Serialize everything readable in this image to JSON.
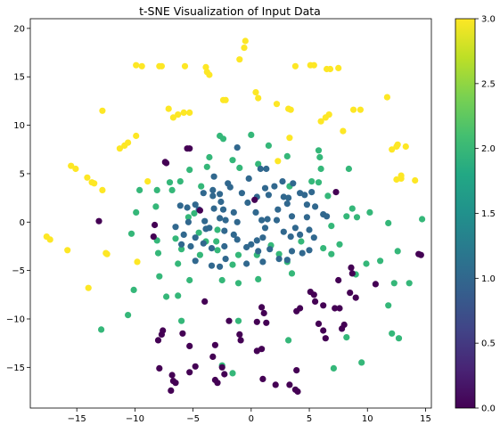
{
  "chart_data": {
    "type": "scatter",
    "title": "t-SNE Visualization of Input Data",
    "xlabel": "",
    "ylabel": "",
    "xlim": [
      -19,
      15.5
    ],
    "ylim": [
      -19.2,
      21
    ],
    "xticks": [
      -15,
      -10,
      -5,
      0,
      5,
      10,
      15
    ],
    "yticks": [
      -15,
      -10,
      -5,
      0,
      5,
      10,
      15,
      20
    ],
    "grid": false,
    "colorbar": {
      "colormap": "viridis",
      "range": [
        0.0,
        3.0
      ],
      "ticks": [
        0.0,
        0.5,
        1.0,
        1.5,
        2.0,
        2.5,
        3.0
      ],
      "tick_labels": [
        "0.0",
        "0.5",
        "1.0",
        "1.5",
        "2.0",
        "2.5",
        "3.0"
      ]
    },
    "series": [
      {
        "value": 3,
        "color": "#fde725",
        "points": [
          [
            -0.5,
            18.7
          ],
          [
            -0.6,
            18.0
          ],
          [
            -1.0,
            16.8
          ],
          [
            -9.9,
            16.2
          ],
          [
            -9.4,
            16.1
          ],
          [
            -7.9,
            16.1
          ],
          [
            -7.7,
            16.1
          ],
          [
            -5.7,
            16.1
          ],
          [
            -3.9,
            16.0
          ],
          [
            -3.8,
            15.5
          ],
          [
            -3.6,
            15.2
          ],
          [
            3.8,
            16.1
          ],
          [
            5.1,
            16.2
          ],
          [
            5.4,
            16.2
          ],
          [
            6.5,
            15.8
          ],
          [
            6.8,
            15.8
          ],
          [
            7.5,
            15.9
          ],
          [
            -2.4,
            12.6
          ],
          [
            -2.2,
            12.6
          ],
          [
            0.4,
            13.4
          ],
          [
            0.6,
            12.8
          ],
          [
            2.2,
            12.2
          ],
          [
            3.2,
            11.7
          ],
          [
            3.4,
            11.6
          ],
          [
            -7.1,
            11.7
          ],
          [
            -6.7,
            10.8
          ],
          [
            -6.3,
            11.1
          ],
          [
            -5.8,
            11.3
          ],
          [
            -5.3,
            11.3
          ],
          [
            -12.8,
            11.5
          ],
          [
            6.0,
            10.4
          ],
          [
            6.4,
            10.8
          ],
          [
            6.7,
            11.1
          ],
          [
            8.8,
            11.6
          ],
          [
            9.4,
            11.6
          ],
          [
            11.7,
            12.9
          ],
          [
            -9.9,
            8.9
          ],
          [
            -10.6,
            8.2
          ],
          [
            -10.9,
            7.9
          ],
          [
            -11.3,
            7.6
          ],
          [
            -8.9,
            4.2
          ],
          [
            7.9,
            9.4
          ],
          [
            12.1,
            7.5
          ],
          [
            12.5,
            7.8
          ],
          [
            12.6,
            8.0
          ],
          [
            13.3,
            7.8
          ],
          [
            -15.5,
            5.8
          ],
          [
            -15.1,
            5.5
          ],
          [
            -14.1,
            4.6
          ],
          [
            -13.7,
            4.1
          ],
          [
            -13.5,
            4.0
          ],
          [
            -12.8,
            3.3
          ],
          [
            12.9,
            4.8
          ],
          [
            12.5,
            4.4
          ],
          [
            12.9,
            4.5
          ],
          [
            14.1,
            4.3
          ],
          [
            -17.6,
            -1.5
          ],
          [
            -17.3,
            -1.8
          ],
          [
            -15.8,
            -2.9
          ],
          [
            -12.5,
            -3.2
          ],
          [
            -12.4,
            -3.3
          ],
          [
            -9.8,
            -4.1
          ],
          [
            -14.0,
            -6.8
          ],
          [
            3.3,
            8.7
          ],
          [
            2.3,
            6.3
          ]
        ]
      },
      {
        "value": 2,
        "color": "#35b779",
        "points": [
          [
            0.0,
            9.0
          ],
          [
            -2.7,
            8.9
          ],
          [
            -2.4,
            8.6
          ],
          [
            1.5,
            7.9
          ],
          [
            -3.6,
            6.7
          ],
          [
            -1.6,
            6.4
          ],
          [
            3.1,
            6.8
          ],
          [
            5.8,
            7.4
          ],
          [
            -5.3,
            5.4
          ],
          [
            -3.8,
            5.7
          ],
          [
            -1.0,
            5.6
          ],
          [
            5.9,
            6.7
          ],
          [
            0.6,
            6.0
          ],
          [
            -7.0,
            4.1
          ],
          [
            -6.1,
            4.2
          ],
          [
            -8.1,
            3.3
          ],
          [
            -9.6,
            3.3
          ],
          [
            -6.8,
            3.3
          ],
          [
            -4.3,
            3.7
          ],
          [
            6.0,
            5.5
          ],
          [
            8.4,
            5.5
          ],
          [
            -8.2,
            1.6
          ],
          [
            -9.9,
            1.0
          ],
          [
            -5.4,
            0.5
          ],
          [
            -4.9,
            0.9
          ],
          [
            10.2,
            1.0
          ],
          [
            9.1,
            0.5
          ],
          [
            -10.3,
            -1.2
          ],
          [
            -8.1,
            -1.9
          ],
          [
            -6.5,
            -1.7
          ],
          [
            -4.5,
            -1.1
          ],
          [
            -3.0,
            -2.0
          ],
          [
            1.7,
            -2.4
          ],
          [
            4.3,
            -2.0
          ],
          [
            6.2,
            -2.7
          ],
          [
            7.6,
            -2.3
          ],
          [
            11.8,
            -0.1
          ],
          [
            -8.0,
            -3.2
          ],
          [
            -4.4,
            -3.4
          ],
          [
            -2.9,
            -2.9
          ],
          [
            3.5,
            -5.3
          ],
          [
            9.0,
            -5.4
          ],
          [
            11.1,
            -4.0
          ],
          [
            14.7,
            0.3
          ],
          [
            -10.1,
            -7.0
          ],
          [
            -7.9,
            -5.6
          ],
          [
            -6.3,
            -4.3
          ],
          [
            -5.3,
            -6.0
          ],
          [
            -2.5,
            -6.0
          ],
          [
            -1.1,
            -6.3
          ],
          [
            0.6,
            -5.9
          ],
          [
            -7.3,
            -7.7
          ],
          [
            -6.3,
            -7.6
          ],
          [
            -10.6,
            -9.6
          ],
          [
            -12.9,
            -11.1
          ],
          [
            -6.0,
            -10.2
          ],
          [
            -1.1,
            -10.2
          ],
          [
            3.2,
            -12.2
          ],
          [
            8.2,
            -11.9
          ],
          [
            7.1,
            -15.1
          ],
          [
            9.5,
            -14.5
          ],
          [
            12.1,
            -11.5
          ],
          [
            12.7,
            -12.0
          ],
          [
            11.8,
            -8.6
          ],
          [
            12.3,
            -6.3
          ],
          [
            13.6,
            -6.3
          ],
          [
            12.6,
            -3.0
          ],
          [
            9.9,
            -4.3
          ],
          [
            2.4,
            -3.3
          ],
          [
            6.9,
            -0.4
          ],
          [
            8.2,
            0.6
          ],
          [
            5.8,
            4.1
          ],
          [
            3.3,
            3.7
          ],
          [
            -1.6,
            -15.6
          ],
          [
            -2.5,
            -14.8
          ],
          [
            0.5,
            -3.4
          ],
          [
            -1.6,
            -4.4
          ],
          [
            -1.1,
            -3.4
          ],
          [
            -2.9,
            -0.8
          ],
          [
            -3.9,
            -2.0
          ],
          [
            5.2,
            4.2
          ],
          [
            6.6,
            2.7
          ],
          [
            8.7,
            1.4
          ],
          [
            6.9,
            -3.3
          ],
          [
            3.1,
            -4.1
          ],
          [
            -6.0,
            -2.8
          ]
        ]
      },
      {
        "value": 1,
        "color": "#31688e",
        "points": [
          [
            -1.2,
            7.7
          ],
          [
            0.8,
            5.5
          ],
          [
            1.3,
            5.5
          ],
          [
            -0.2,
            4.5
          ],
          [
            -3.2,
            4.7
          ],
          [
            -2.0,
            4.0
          ],
          [
            -1.8,
            3.6
          ],
          [
            -0.8,
            3.0
          ],
          [
            0.5,
            2.6
          ],
          [
            1.2,
            3.5
          ],
          [
            2.0,
            3.7
          ],
          [
            2.7,
            4.2
          ],
          [
            3.6,
            4.0
          ],
          [
            -4.1,
            3.0
          ],
          [
            -3.3,
            3.3
          ],
          [
            -3.3,
            2.7
          ],
          [
            -2.7,
            2.9
          ],
          [
            -2.6,
            2.1
          ],
          [
            -0.3,
            2.0
          ],
          [
            1.5,
            2.8
          ],
          [
            2.8,
            2.6
          ],
          [
            3.2,
            2.5
          ],
          [
            4.2,
            3.0
          ],
          [
            4.6,
            2.8
          ],
          [
            5.2,
            3.1
          ],
          [
            -6.1,
            1.7
          ],
          [
            -5.5,
            1.5
          ],
          [
            -4.8,
            1.8
          ],
          [
            -4.5,
            1.3
          ],
          [
            -3.2,
            1.4
          ],
          [
            -2.4,
            1.3
          ],
          [
            -1.5,
            1.0
          ],
          [
            0.4,
            1.0
          ],
          [
            2.3,
            1.3
          ],
          [
            3.1,
            1.9
          ],
          [
            4.8,
            1.8
          ],
          [
            5.5,
            1.6
          ],
          [
            -5.4,
            0.0
          ],
          [
            -4.0,
            0.1
          ],
          [
            -2.7,
            0.4
          ],
          [
            -2.2,
            0.2
          ],
          [
            0.9,
            0.2
          ],
          [
            1.4,
            0.3
          ],
          [
            2.2,
            0.2
          ],
          [
            3.5,
            0.6
          ],
          [
            4.8,
            0.5
          ],
          [
            6.2,
            0.8
          ],
          [
            6.5,
            0.6
          ],
          [
            -6.5,
            -0.5
          ],
          [
            -5.8,
            -1.3
          ],
          [
            -4.8,
            -1.6
          ],
          [
            -3.9,
            -0.7
          ],
          [
            -2.3,
            -0.9
          ],
          [
            -1.5,
            -1.3
          ],
          [
            0.5,
            -1.9
          ],
          [
            2.8,
            -1.0
          ],
          [
            3.8,
            -0.6
          ],
          [
            5.0,
            -0.8
          ],
          [
            -6.0,
            -2.3
          ],
          [
            -5.2,
            -2.5
          ],
          [
            -4.1,
            -2.2
          ],
          [
            -3.4,
            -2.7
          ],
          [
            -2.3,
            -2.5
          ],
          [
            0.0,
            -2.3
          ],
          [
            1.0,
            -1.6
          ],
          [
            3.4,
            -1.5
          ],
          [
            4.2,
            -1.3
          ],
          [
            5.4,
            -1.6
          ],
          [
            -3.4,
            -4.5
          ],
          [
            -2.7,
            -4.6
          ],
          [
            -0.4,
            -4.3
          ],
          [
            1.0,
            -4.1
          ],
          [
            2.4,
            -3.8
          ],
          [
            3.1,
            -3.9
          ],
          [
            4.4,
            -3.2
          ],
          [
            5.0,
            -2.9
          ],
          [
            -0.4,
            -2.6
          ],
          [
            0.6,
            -3.0
          ],
          [
            1.6,
            -2.8
          ],
          [
            -1.2,
            -1.8
          ],
          [
            -4.8,
            -4.0
          ],
          [
            -2.2,
            -3.8
          ],
          [
            1.2,
            -0.6
          ],
          [
            3.5,
            -3.0
          ],
          [
            -3.6,
            -0.6
          ],
          [
            -1.2,
            0.0
          ]
        ]
      },
      {
        "value": 0,
        "color": "#440154",
        "points": [
          [
            -5.5,
            7.6
          ],
          [
            -5.3,
            7.6
          ],
          [
            -7.4,
            6.2
          ],
          [
            -7.3,
            6.1
          ],
          [
            -13.1,
            0.1
          ],
          [
            -8.3,
            -0.3
          ],
          [
            -8.4,
            -1.5
          ],
          [
            -4.4,
            1.2
          ],
          [
            0.3,
            2.3
          ],
          [
            7.3,
            3.1
          ],
          [
            -4.0,
            -8.2
          ],
          [
            0.9,
            -8.8
          ],
          [
            -7.6,
            -11.2
          ],
          [
            -7.7,
            -11.6
          ],
          [
            -5.9,
            -11.5
          ],
          [
            -8.0,
            -12.2
          ],
          [
            -1.9,
            -10.2
          ],
          [
            1.1,
            -9.4
          ],
          [
            1.3,
            -10.4
          ],
          [
            3.9,
            -9.2
          ],
          [
            4.2,
            -8.9
          ],
          [
            5.1,
            -7.2
          ],
          [
            5.4,
            -7.5
          ],
          [
            5.5,
            -8.2
          ],
          [
            6.2,
            -8.6
          ],
          [
            7.2,
            -8.9
          ],
          [
            7.6,
            -8.9
          ],
          [
            8.0,
            -10.6
          ],
          [
            8.5,
            -7.3
          ],
          [
            8.6,
            -4.7
          ],
          [
            8.7,
            -5.3
          ],
          [
            9.0,
            -7.8
          ],
          [
            10.7,
            -6.4
          ],
          [
            14.4,
            -3.3
          ],
          [
            14.6,
            -3.4
          ],
          [
            7.5,
            -6.0
          ],
          [
            6.2,
            -11.2
          ],
          [
            5.8,
            -10.5
          ],
          [
            6.4,
            -12.0
          ],
          [
            -1.0,
            -11.6
          ],
          [
            -0.9,
            -12.2
          ],
          [
            -3.1,
            -12.7
          ],
          [
            -5.3,
            -12.8
          ],
          [
            0.5,
            -13.3
          ],
          [
            0.9,
            -13.1
          ],
          [
            -3.3,
            -13.9
          ],
          [
            -2.5,
            -15.0
          ],
          [
            -4.8,
            -14.9
          ],
          [
            -5.3,
            -15.5
          ],
          [
            -6.8,
            -15.8
          ],
          [
            -7.9,
            -15.1
          ],
          [
            -6.7,
            -16.4
          ],
          [
            -6.5,
            -16.6
          ],
          [
            -6.9,
            -17.4
          ],
          [
            -3.1,
            -16.3
          ],
          [
            -2.9,
            -16.6
          ],
          [
            1.0,
            -16.2
          ],
          [
            2.1,
            -16.8
          ],
          [
            3.3,
            -16.8
          ],
          [
            3.8,
            -17.3
          ],
          [
            4.0,
            -17.5
          ],
          [
            3.9,
            -15.3
          ],
          [
            -2.3,
            -15.7
          ],
          [
            0.5,
            -10.3
          ],
          [
            7.8,
            -11.0
          ]
        ]
      }
    ]
  }
}
